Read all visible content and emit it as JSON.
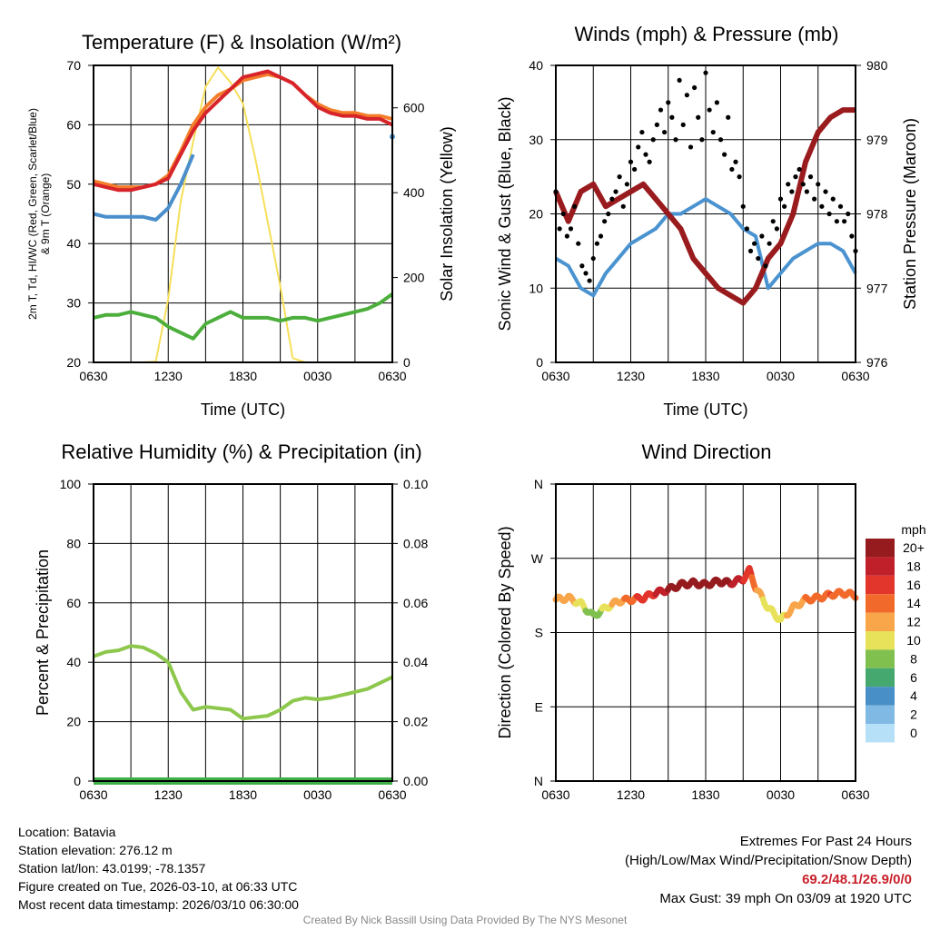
{
  "credit": "Created By Nick Bassill Using Data Provided By The NYS Mesonet",
  "station": {
    "location": "Location: Batavia",
    "elevation": "Station elevation: 276.12 m",
    "latlon": "Station lat/lon: 43.0199; -78.1357",
    "created": "Figure created on Tue, 2026-03-10, at 06:33 UTC",
    "recent": "Most recent data timestamp: 2026/03/10 06:30:00"
  },
  "extremes": {
    "title": "Extremes For Past 24 Hours",
    "subtitle": "(High/Low/Max Wind/Precipitation/Snow Depth)",
    "values": "69.2/48.1/26.9/0/0",
    "gust": "Max Gust: 39 mph On 03/09 at 1920 UTC",
    "value_color": "#c8202a"
  },
  "chart_data": [
    {
      "type": "line",
      "title": "Temperature (F) & Insolation (W/m²)",
      "xlabel": "Time (UTC)",
      "ylabel": "2m T, Td, HI/WC (Red, Green, Scarlet/Blue)",
      "ylabel2": "& 9m T (Orange)",
      "y2label": "Solar Insolation (Yellow)",
      "xticks": [
        "0630",
        "1230",
        "1830",
        "0030",
        "0630"
      ],
      "ylim": [
        20,
        70
      ],
      "yticks": [
        "20",
        "30",
        "40",
        "50",
        "60",
        "70"
      ],
      "y2lim": [
        0,
        700
      ],
      "y2ticks": [
        "0",
        "200",
        "400",
        "600"
      ],
      "x_hours": [
        0,
        1,
        2,
        3,
        4,
        5,
        6,
        7,
        8,
        9,
        10,
        11,
        12,
        13,
        14,
        15,
        16,
        17,
        18,
        19,
        20,
        21,
        22,
        23,
        24
      ],
      "series": [
        {
          "name": "Insolation",
          "axis": "right",
          "color": "#f6df5a",
          "values": [
            0,
            0,
            0,
            0,
            0,
            2,
            150,
            380,
            520,
            650,
            695,
            660,
            610,
            480,
            330,
            180,
            10,
            0,
            0,
            0,
            0,
            0,
            0,
            0,
            0
          ]
        },
        {
          "name": "Dew Point",
          "color": "#4caf3c",
          "values": [
            27.5,
            28,
            28,
            28.5,
            28,
            27.5,
            26,
            25,
            24,
            26.5,
            27.5,
            28.5,
            27.5,
            27.5,
            27.5,
            27,
            27.5,
            27.5,
            27,
            27.5,
            28,
            28.5,
            29,
            30,
            31.5
          ]
        },
        {
          "name": "9m T",
          "color": "#f47d2a",
          "values": [
            50.5,
            50,
            49.5,
            49.5,
            49.5,
            50,
            51.5,
            55.5,
            60,
            63,
            65,
            66,
            67.5,
            68,
            68.5,
            68,
            67,
            65,
            63.5,
            62.5,
            62,
            62,
            61.5,
            61.5,
            61
          ]
        },
        {
          "name": "2m T",
          "color": "#d7242a",
          "values": [
            50,
            49.5,
            49,
            49,
            49.5,
            50,
            51,
            55,
            59,
            62,
            64,
            66,
            68,
            68.5,
            69,
            68,
            67,
            65,
            63,
            62,
            61.5,
            61.5,
            61,
            61,
            60
          ]
        },
        {
          "name": "HI/WC",
          "color": "#4a8fcb",
          "values": [
            45,
            44.5,
            44.5,
            44.5,
            44.5,
            44,
            46,
            50,
            55,
            null,
            null,
            null,
            null,
            null,
            null,
            null,
            null,
            null,
            null,
            null,
            null,
            null,
            null,
            null,
            58
          ]
        }
      ]
    },
    {
      "type": "line",
      "title": "Winds (mph) & Pressure (mb)",
      "xlabel": "Time (UTC)",
      "ylabel": "Sonic Wind & Gust (Blue, Black)",
      "y2label": "Station Pressure (Maroon)",
      "xticks": [
        "0630",
        "1230",
        "1830",
        "0030",
        "0630"
      ],
      "ylim": [
        0,
        40
      ],
      "yticks": [
        "0",
        "10",
        "20",
        "30",
        "40"
      ],
      "y2lim": [
        976,
        980
      ],
      "y2ticks": [
        "976",
        "977",
        "978",
        "979",
        "980"
      ],
      "x_hours": [
        0,
        1,
        2,
        3,
        4,
        5,
        6,
        7,
        8,
        9,
        10,
        11,
        12,
        13,
        14,
        15,
        16,
        17,
        18,
        19,
        20,
        21,
        22,
        23,
        24
      ],
      "series": [
        {
          "name": "Sonic Wind",
          "color": "#4a93d0",
          "values": [
            14,
            13,
            10,
            9,
            12,
            14,
            16,
            17,
            18,
            20,
            20,
            21,
            22,
            21,
            20,
            18,
            17,
            10,
            12,
            14,
            15,
            16,
            16,
            15,
            12
          ]
        },
        {
          "name": "Station Pressure",
          "axis": "right",
          "color": "#9a1b1e",
          "values": [
            978.3,
            977.9,
            978.3,
            978.4,
            978.1,
            978.2,
            978.3,
            978.4,
            978.2,
            978.0,
            977.8,
            977.4,
            977.2,
            977.0,
            976.9,
            976.8,
            977.0,
            977.4,
            977.6,
            978.0,
            978.7,
            979.1,
            979.3,
            979.4,
            979.4
          ]
        }
      ],
      "gusts": [
        [
          0,
          23
        ],
        [
          0.3,
          18
        ],
        [
          0.6,
          20
        ],
        [
          0.9,
          17
        ],
        [
          1.2,
          18
        ],
        [
          1.5,
          21
        ],
        [
          1.8,
          16
        ],
        [
          2.1,
          13
        ],
        [
          2.4,
          12
        ],
        [
          2.7,
          11
        ],
        [
          3,
          14
        ],
        [
          3.3,
          16
        ],
        [
          3.6,
          17
        ],
        [
          3.9,
          19
        ],
        [
          4.2,
          20
        ],
        [
          4.5,
          22
        ],
        [
          4.8,
          23
        ],
        [
          5.1,
          25
        ],
        [
          5.4,
          21
        ],
        [
          5.7,
          24
        ],
        [
          6,
          27
        ],
        [
          6.3,
          26
        ],
        [
          6.6,
          29
        ],
        [
          6.9,
          31
        ],
        [
          7.2,
          28
        ],
        [
          7.5,
          27
        ],
        [
          7.8,
          30
        ],
        [
          8.1,
          32
        ],
        [
          8.4,
          34
        ],
        [
          8.7,
          31
        ],
        [
          9,
          35
        ],
        [
          9.3,
          33
        ],
        [
          9.6,
          30
        ],
        [
          9.9,
          38
        ],
        [
          10.2,
          32
        ],
        [
          10.5,
          36
        ],
        [
          10.8,
          29
        ],
        [
          11.1,
          37
        ],
        [
          11.4,
          33
        ],
        [
          11.7,
          30
        ],
        [
          12,
          39
        ],
        [
          12.3,
          34
        ],
        [
          12.6,
          31
        ],
        [
          12.9,
          35
        ],
        [
          13.2,
          30
        ],
        [
          13.5,
          28
        ],
        [
          13.8,
          33
        ],
        [
          14.1,
          26
        ],
        [
          14.4,
          27
        ],
        [
          14.7,
          25
        ],
        [
          15,
          21
        ],
        [
          15.3,
          18
        ],
        [
          15.6,
          15
        ],
        [
          15.9,
          16
        ],
        [
          16.2,
          14
        ],
        [
          16.5,
          17
        ],
        [
          16.8,
          13
        ],
        [
          17.1,
          16
        ],
        [
          17.4,
          19
        ],
        [
          17.7,
          18
        ],
        [
          18,
          22
        ],
        [
          18.3,
          21
        ],
        [
          18.6,
          24
        ],
        [
          18.9,
          23
        ],
        [
          19.2,
          25
        ],
        [
          19.5,
          26
        ],
        [
          19.8,
          24
        ],
        [
          20.1,
          23
        ],
        [
          20.4,
          25
        ],
        [
          20.7,
          22
        ],
        [
          21,
          24
        ],
        [
          21.3,
          21
        ],
        [
          21.6,
          23
        ],
        [
          21.9,
          20
        ],
        [
          22.2,
          22
        ],
        [
          22.5,
          19
        ],
        [
          22.8,
          21
        ],
        [
          23.1,
          19
        ],
        [
          23.4,
          20
        ],
        [
          23.7,
          17
        ],
        [
          24,
          15
        ]
      ]
    },
    {
      "type": "line",
      "title": "Relative Humidity (%) & Precipitation (in)",
      "ylabel": "Percent & Precipitation",
      "xticks": [
        "0630",
        "1230",
        "1830",
        "0030",
        "0630"
      ],
      "ylim": [
        0,
        100
      ],
      "yticks": [
        "0",
        "20",
        "40",
        "60",
        "80",
        "100"
      ],
      "y2lim": [
        0,
        0.1
      ],
      "y2ticks": [
        "0.00",
        "0.02",
        "0.04",
        "0.06",
        "0.08",
        "0.10"
      ],
      "x_hours": [
        0,
        1,
        2,
        3,
        4,
        5,
        6,
        7,
        8,
        9,
        10,
        11,
        12,
        13,
        14,
        15,
        16,
        17,
        18,
        19,
        20,
        21,
        22,
        23,
        24
      ],
      "series": [
        {
          "name": "Relative Humidity",
          "color": "#8dc74c",
          "values": [
            42,
            43.5,
            44,
            45.5,
            45,
            43,
            40,
            30,
            24,
            25,
            24.5,
            24,
            21,
            21.5,
            22,
            24,
            27,
            28,
            27.5,
            28,
            29,
            30,
            31,
            33,
            35
          ]
        },
        {
          "name": "Precipitation",
          "axis": "right",
          "color": "#3fae49",
          "values": [
            0,
            0,
            0,
            0,
            0,
            0,
            0,
            0,
            0,
            0,
            0,
            0,
            0,
            0,
            0,
            0,
            0,
            0,
            0,
            0,
            0,
            0,
            0,
            0,
            0
          ]
        }
      ]
    },
    {
      "type": "scatter",
      "title": "Wind Direction",
      "ylabel": "Direction (Colored By Speed)",
      "xticks": [
        "0630",
        "1230",
        "1830",
        "0030",
        "0630"
      ],
      "yticks": [
        "N",
        "E",
        "S",
        "W",
        "N"
      ],
      "ylim": [
        0,
        360
      ],
      "x_hours": [
        0,
        1,
        2,
        3,
        4,
        5,
        6,
        7,
        8,
        9,
        10,
        11,
        12,
        13,
        14,
        15,
        15.5,
        16,
        17,
        18,
        19,
        20,
        21,
        22,
        23,
        24
      ],
      "direction": [
        220,
        222,
        215,
        200,
        210,
        218,
        220,
        222,
        228,
        232,
        238,
        240,
        238,
        242,
        240,
        245,
        255,
        235,
        210,
        195,
        210,
        220,
        222,
        226,
        228,
        225
      ],
      "speed": [
        12,
        13,
        11,
        8,
        11,
        13,
        15,
        17,
        18,
        20,
        20,
        21,
        22,
        21,
        20,
        18,
        17,
        14,
        10,
        11,
        13,
        14,
        15,
        16,
        15,
        14
      ],
      "legend": {
        "title": "mph",
        "labels": [
          "20+",
          "18",
          "16",
          "14",
          "12",
          "10",
          "8",
          "6",
          "4",
          "2",
          "0"
        ],
        "colors": [
          "#951b1e",
          "#c0202a",
          "#e2352b",
          "#f26a2b",
          "#f9a54a",
          "#e8e25a",
          "#80c04e",
          "#45a86e",
          "#478fc6",
          "#7fb9e4",
          "#b5e0f7"
        ]
      }
    }
  ]
}
